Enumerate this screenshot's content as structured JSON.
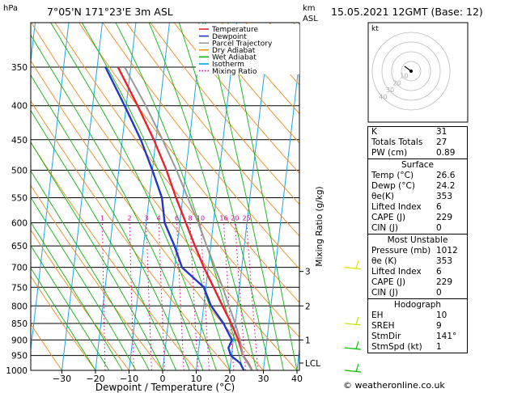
{
  "header": {
    "hpa_unit": "hPa",
    "location": "7°05'N 171°23'E 3m ASL",
    "km_unit": "km",
    "asl_unit": "ASL",
    "datetime": "15.05.2021 12GMT (Base: 12)"
  },
  "legend": [
    {
      "label": "Temperature",
      "color": "#e8232d",
      "style": "solid"
    },
    {
      "label": "Dewpoint",
      "color": "#2236c8",
      "style": "solid"
    },
    {
      "label": "Parcel Trajectory",
      "color": "#999999",
      "style": "solid"
    },
    {
      "label": "Dry Adiabat",
      "color": "#ff8c00",
      "style": "solid"
    },
    {
      "label": "Wet Adiabat",
      "color": "#00b000",
      "style": "solid"
    },
    {
      "label": "Isotherm",
      "color": "#00a0e0",
      "style": "solid"
    },
    {
      "label": "Mixing Ratio",
      "color": "#e000a0",
      "style": "dotted"
    }
  ],
  "chart_data": {
    "type": "line",
    "subtype": "skew-T log-p",
    "xlabel": "Dewpoint / Temperature (°C)",
    "ylabel_right": "Mixing Ratio (g/kg)",
    "xlim": [
      -35,
      40
    ],
    "ylim": [
      1000,
      300
    ],
    "y_scale": "log",
    "x_ticks": [
      "−30",
      "−20",
      "−10",
      "0",
      "10",
      "20",
      "30",
      "40"
    ],
    "x_tick_values": [
      -30,
      -20,
      -10,
      0,
      10,
      20,
      30,
      40
    ],
    "p_ticks": [
      1000,
      950,
      900,
      850,
      800,
      750,
      700,
      650,
      600,
      550,
      500,
      450,
      400,
      350
    ],
    "km_ticks": [
      {
        "km": "LCL",
        "p": 975
      },
      {
        "km": "1",
        "p": 900
      },
      {
        "km": "2",
        "p": 800
      },
      {
        "km": "3",
        "p": 710
      }
    ],
    "mixing_ratio_labels": [
      "1",
      "2",
      "3",
      "4",
      "6",
      "8",
      "10",
      "16",
      "20",
      "25"
    ],
    "mixing_ratio_values": [
      1,
      2,
      3,
      4,
      6,
      8,
      10,
      16,
      20,
      25
    ],
    "mixing_ratio_label_p": 600,
    "grid": true,
    "series": [
      {
        "name": "Temperature",
        "color": "#e8232d",
        "p": [
          1000,
          975,
          950,
          925,
          900,
          850,
          800,
          750,
          700,
          650,
          600,
          550,
          500,
          450,
          400,
          350
        ],
        "t": [
          26.6,
          25.2,
          23.4,
          22.5,
          21.5,
          18.8,
          15.6,
          12.3,
          8.7,
          5.3,
          1.8,
          -2.0,
          -5.8,
          -10.6,
          -16.6,
          -23.8
        ]
      },
      {
        "name": "Dewpoint",
        "color": "#2236c8",
        "p": [
          1000,
          975,
          950,
          925,
          900,
          850,
          800,
          750,
          700,
          650,
          600,
          550,
          500,
          450,
          400,
          350
        ],
        "t": [
          24.2,
          22.8,
          19.8,
          18.8,
          19.6,
          16.5,
          12.2,
          9.4,
          2.2,
          -0.8,
          -4.5,
          -6.2,
          -10.0,
          -14.5,
          -20.5,
          -27.5
        ]
      },
      {
        "name": "Parcel Trajectory",
        "color": "#999999",
        "p": [
          1000,
          950,
          900,
          850,
          800,
          750,
          700,
          650,
          600,
          550,
          500,
          450,
          400,
          350
        ],
        "t": [
          26.6,
          23.4,
          22.0,
          20.0,
          17.5,
          15.0,
          12.0,
          8.8,
          5.5,
          1.5,
          -2.8,
          -8.0,
          -14.2,
          -21.8
        ]
      }
    ]
  },
  "hodograph": {
    "label": "kt",
    "ring_labels": [
      "10",
      "20",
      "30",
      "40"
    ]
  },
  "stats": {
    "top": [
      {
        "label": "K",
        "value": "31"
      },
      {
        "label": "Totals Totals",
        "value": "27"
      },
      {
        "label": "PW (cm)",
        "value": "0.89"
      }
    ],
    "surface": {
      "title": "Surface",
      "rows": [
        {
          "label": "Temp (°C)",
          "value": "26.6"
        },
        {
          "label": "Dewp (°C)",
          "value": "24.2"
        },
        {
          "label": "θe(K)",
          "value": "353"
        },
        {
          "label": "Lifted Index",
          "value": "6"
        },
        {
          "label": "CAPE (J)",
          "value": "229"
        },
        {
          "label": "CIN (J)",
          "value": "0"
        }
      ]
    },
    "most_unstable": {
      "title": "Most Unstable",
      "rows": [
        {
          "label": "Pressure (mb)",
          "value": "1012"
        },
        {
          "label": "θe (K)",
          "value": "353"
        },
        {
          "label": "Lifted Index",
          "value": "6"
        },
        {
          "label": "CAPE (J)",
          "value": "229"
        },
        {
          "label": "CIN (J)",
          "value": "0"
        }
      ]
    },
    "hodograph": {
      "title": "Hodograph",
      "rows": [
        {
          "label": "EH",
          "value": "10"
        },
        {
          "label": "SREH",
          "value": "9"
        },
        {
          "label": "StmDir",
          "value": "141°"
        },
        {
          "label": "StmSpd (kt)",
          "value": "1"
        }
      ]
    }
  },
  "credit": "© weatheronline.co.uk"
}
